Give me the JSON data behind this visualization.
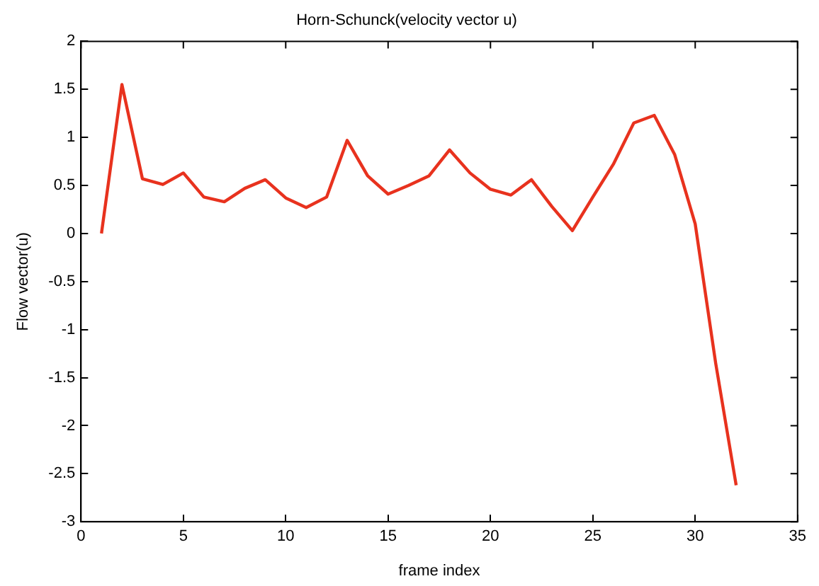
{
  "chart_data": {
    "type": "line",
    "title": "Horn-Schunck(velocity vector u)",
    "xlabel": "frame index",
    "ylabel": "Flow vector(u)",
    "x": [
      1,
      2,
      3,
      4,
      5,
      6,
      7,
      8,
      9,
      10,
      11,
      12,
      13,
      14,
      15,
      16,
      17,
      18,
      19,
      20,
      21,
      22,
      23,
      24,
      25,
      26,
      27,
      28,
      29,
      30,
      31,
      32
    ],
    "series": [
      {
        "color": "#e8321e",
        "values": [
          0,
          1.55,
          0.57,
          0.51,
          0.63,
          0.38,
          0.33,
          0.47,
          0.56,
          0.37,
          0.27,
          0.38,
          0.97,
          0.6,
          0.41,
          0.5,
          0.6,
          0.87,
          0.63,
          0.46,
          0.4,
          0.56,
          0.28,
          0.03,
          0.38,
          0.72,
          1.15,
          1.23,
          0.82,
          0.1,
          -1.35,
          -2.62
        ]
      }
    ],
    "xlim": [
      0,
      35
    ],
    "xticks": [
      0,
      5,
      10,
      15,
      20,
      25,
      30,
      35
    ],
    "ylim": [
      -3,
      2
    ],
    "yticks": [
      -3,
      -2.5,
      -2,
      -1.5,
      -1,
      -0.5,
      0,
      0.5,
      1,
      1.5,
      2
    ],
    "grid": false,
    "legend": false,
    "marker": "none",
    "line_style": "solid"
  }
}
